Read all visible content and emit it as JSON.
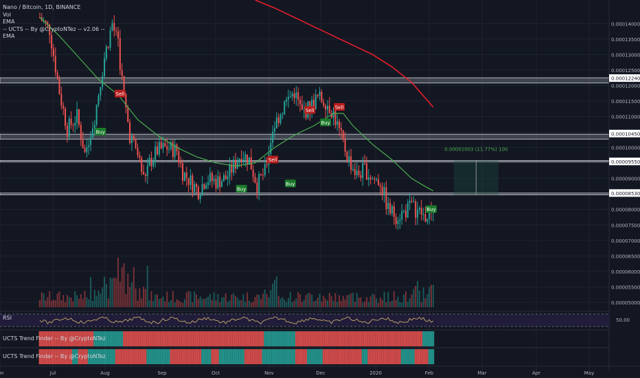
{
  "legend": {
    "title": "Nano / Bitcoin, 1D, BINANCE",
    "line2": "Vol",
    "line3": "EMA",
    "line4": "-- UCTS -- By @CryptoNTez -- v2.06 --",
    "line5": "EMA"
  },
  "panels": {
    "rsi_label": "RSI",
    "rsi_value": "50.00",
    "trend1_label": "UCTS Trend Finder -- By @CryptoNTez",
    "trend2_label": "UCTS Trend Finder -- By @CryptoNTez"
  },
  "measure_label": "0.00001003 (11.77%) 100",
  "colors": {
    "background": "#131722",
    "up": "#26a69a",
    "down": "#ef5350",
    "ema_fast": "#4caf50",
    "ema_slow": "#e91e2b",
    "zone": "#9598a1",
    "rsi": "#c9a96b",
    "signal_buy": "#1b7a2a",
    "signal_sell": "#b71c1c"
  },
  "chart_data": {
    "type": "candlestick",
    "title": "Nano / Bitcoin, 1D, BINANCE",
    "x_ticks": [
      "Jun",
      "Jul",
      "Aug",
      "Sep",
      "Oct",
      "Nov",
      "Dec",
      "2020",
      "Feb",
      "Mar",
      "Apr",
      "May"
    ],
    "y_ticks": [
      "0.00014000",
      "0.00013500",
      "0.00013000",
      "0.00012500",
      "0.00012000",
      "0.00011500",
      "0.00011000",
      "0.00010500",
      "0.00010000",
      "0.00009500",
      "0.00009000",
      "0.00008500",
      "0.00008000",
      "0.00007500",
      "0.00007000",
      "0.00006500",
      "0.00006000",
      "0.00005500",
      "0.00005000"
    ],
    "y_range": [
      4.778e-05,
      0.0001476
    ],
    "price_labels": [
      "0.00012240",
      "0.00010450",
      "0.00009550",
      "0.00008530"
    ],
    "support_resistance_zones": [
      [
        0.0001208,
        0.0001225
      ],
      [
        0.0001027,
        0.0001043
      ],
      [
        9.54e-05,
        9.58e-05
      ],
      [
        8.47e-05,
        8.53e-05
      ]
    ],
    "close_path": [
      [
        0,
        0.000142
      ],
      [
        5,
        0.000138
      ],
      [
        10,
        0.000118
      ],
      [
        14,
        0.000106
      ],
      [
        19,
        0.00011
      ],
      [
        23,
        9.8e-05
      ],
      [
        28,
        0.00011
      ],
      [
        33,
        0.000129
      ],
      [
        37,
        0.00014
      ],
      [
        40,
        0.000133
      ],
      [
        43,
        0.000116
      ],
      [
        46,
        0.000104
      ],
      [
        50,
        9.8e-05
      ],
      [
        53,
        9e-05
      ],
      [
        56,
        9.5e-05
      ],
      [
        60,
        9.9e-05
      ],
      [
        65,
        0.0001
      ],
      [
        70,
        9.9e-05
      ],
      [
        73,
        9.2e-05
      ],
      [
        77,
        8.9e-05
      ],
      [
        81,
        8.6e-05
      ],
      [
        85,
        9e-05
      ],
      [
        90,
        8.9e-05
      ],
      [
        95,
        9e-05
      ],
      [
        99,
        9.4e-05
      ],
      [
        103,
        9.8e-05
      ],
      [
        107,
        9.6e-05
      ],
      [
        111,
        8.8e-05
      ],
      [
        115,
        9.2e-05
      ],
      [
        119,
        0.000106
      ],
      [
        122,
        0.00011
      ],
      [
        126,
        0.000115
      ],
      [
        130,
        0.000118
      ],
      [
        134,
        0.000111
      ],
      [
        138,
        0.000113
      ],
      [
        142,
        0.000116
      ],
      [
        146,
        0.000115
      ],
      [
        150,
        0.000111
      ],
      [
        154,
        0.000103
      ],
      [
        158,
        9.6e-05
      ],
      [
        162,
        9.1e-05
      ],
      [
        166,
        9.3e-05
      ],
      [
        170,
        9e-05
      ],
      [
        174,
        8.9e-05
      ],
      [
        178,
        8e-05
      ],
      [
        182,
        7.8e-05
      ],
      [
        186,
        7.9e-05
      ],
      [
        190,
        8.1e-05
      ],
      [
        194,
        7.9e-05
      ],
      [
        198,
        7.7e-05
      ],
      [
        201,
        8.1e-05
      ]
    ],
    "ema_fast": [
      [
        0,
        0.000142
      ],
      [
        10,
        0.000136
      ],
      [
        20,
        0.000129
      ],
      [
        30,
        0.000122
      ],
      [
        40,
        0.000117
      ],
      [
        50,
        0.000109
      ],
      [
        60,
        0.000104
      ],
      [
        70,
        0.0001
      ],
      [
        80,
        9.7e-05
      ],
      [
        90,
        9.5e-05
      ],
      [
        100,
        9.4e-05
      ],
      [
        110,
        9.5e-05
      ],
      [
        120,
        0.0001
      ],
      [
        130,
        0.000104
      ],
      [
        140,
        0.000107
      ],
      [
        150,
        0.000111
      ],
      [
        155,
        0.000111
      ],
      [
        160,
        0.000107
      ],
      [
        170,
        0.000101
      ],
      [
        180,
        9.6e-05
      ],
      [
        190,
        9e-05
      ],
      [
        198,
        8.7e-05
      ],
      [
        201,
        8.6e-05
      ]
    ],
    "ema_slow": [
      [
        110,
        0.0001476
      ],
      [
        120,
        0.000145
      ],
      [
        130,
        0.000142
      ],
      [
        140,
        0.000139
      ],
      [
        150,
        0.000136
      ],
      [
        160,
        0.000133
      ],
      [
        170,
        0.00013
      ],
      [
        180,
        0.000126
      ],
      [
        190,
        0.000121
      ],
      [
        201,
        0.000113
      ]
    ],
    "signals": [
      {
        "day": 41,
        "price": 0.0001173,
        "label": "Sell"
      },
      {
        "day": 31,
        "price": 0.000105,
        "label": "Buy"
      },
      {
        "day": 103,
        "price": 8.66e-05,
        "label": "Buy"
      },
      {
        "day": 119,
        "price": 9.6e-05,
        "label": "Sell"
      },
      {
        "day": 128,
        "price": 8.83e-05,
        "label": "Buy"
      },
      {
        "day": 138,
        "price": 0.000112,
        "label": "Sell"
      },
      {
        "day": 146,
        "price": 0.000108,
        "label": "Buy"
      },
      {
        "day": 153,
        "price": 0.000113,
        "label": "Sell"
      },
      {
        "day": 200,
        "price": 8e-05,
        "label": "Buy"
      }
    ],
    "rsi_level": 50
  }
}
